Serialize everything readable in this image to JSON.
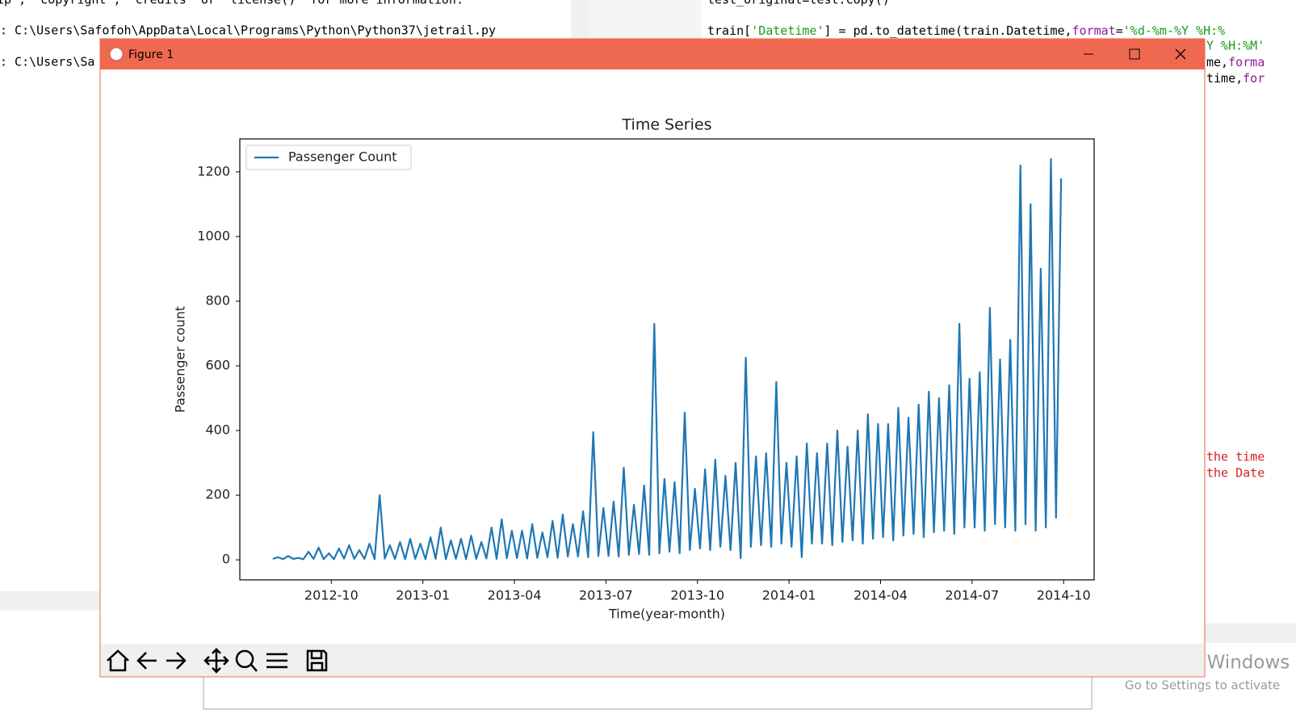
{
  "background": {
    "console_lines": [
      "ip\", \"copyright\", \"credits\" or \"license()\" for more information.",
      ": C:\\Users\\Safofoh\\AppData\\Local\\Programs\\Python\\Python37\\jetrail.py",
      ": C:\\Users\\Sa"
    ],
    "code_top": "test_original=test.copy()",
    "code_parts": [
      "train[",
      "'Datetime'",
      "] = pd.to_datetime(train.Datetime,",
      "format",
      "=",
      "'%d-%m-%Y %H:%"
    ],
    "code_fragments": [
      "Y %H:%M'",
      "me,",
      "forma",
      "time,",
      "for"
    ],
    "comment_lines": [
      "the time",
      "the Date"
    ],
    "watermark": [
      "Activate Windows",
      "Go to Settings to activate"
    ]
  },
  "window": {
    "title": "Figure 1"
  },
  "chart_data": {
    "type": "line",
    "title": "Time Series",
    "x_label": "Time(year-month)",
    "y_label": "Passenger count",
    "legend": "upper left",
    "grid": false,
    "xlim": [
      "2012-07",
      "2014-11"
    ],
    "xticks": [
      "2012-10",
      "2013-01",
      "2013-04",
      "2013-07",
      "2013-10",
      "2014-01",
      "2014-04",
      "2014-07",
      "2014-10"
    ],
    "ylim": [
      -62,
      1302
    ],
    "yticks": [
      0,
      200,
      400,
      600,
      800,
      1000,
      1200
    ],
    "x": [
      "2012-08",
      "2012-08",
      "2012-08",
      "2012-08",
      "2012-08",
      "2012-08",
      "2012-09",
      "2012-09",
      "2012-09",
      "2012-09",
      "2012-09",
      "2012-09",
      "2012-10",
      "2012-10",
      "2012-10",
      "2012-10",
      "2012-10",
      "2012-10",
      "2012-11",
      "2012-11",
      "2012-11",
      "2012-11",
      "2012-11",
      "2012-11",
      "2012-12",
      "2012-12",
      "2012-12",
      "2012-12",
      "2012-12",
      "2012-12",
      "2013-01",
      "2013-01",
      "2013-01",
      "2013-01",
      "2013-01",
      "2013-01",
      "2013-02",
      "2013-02",
      "2013-02",
      "2013-02",
      "2013-02",
      "2013-02",
      "2013-03",
      "2013-03",
      "2013-03",
      "2013-03",
      "2013-03",
      "2013-03",
      "2013-04",
      "2013-04",
      "2013-04",
      "2013-04",
      "2013-04",
      "2013-04",
      "2013-05",
      "2013-05",
      "2013-05",
      "2013-05",
      "2013-05",
      "2013-05",
      "2013-06",
      "2013-06",
      "2013-06",
      "2013-06",
      "2013-06",
      "2013-06",
      "2013-07",
      "2013-07",
      "2013-07",
      "2013-07",
      "2013-07",
      "2013-07",
      "2013-08",
      "2013-08",
      "2013-08",
      "2013-08",
      "2013-08",
      "2013-08",
      "2013-09",
      "2013-09",
      "2013-09",
      "2013-09",
      "2013-09",
      "2013-09",
      "2013-10",
      "2013-10",
      "2013-10",
      "2013-10",
      "2013-10",
      "2013-10",
      "2013-11",
      "2013-11",
      "2013-11",
      "2013-11",
      "2013-11",
      "2013-11",
      "2013-12",
      "2013-12",
      "2013-12",
      "2013-12",
      "2013-12",
      "2013-12",
      "2014-01",
      "2014-01",
      "2014-01",
      "2014-01",
      "2014-01",
      "2014-01",
      "2014-02",
      "2014-02",
      "2014-02",
      "2014-02",
      "2014-02",
      "2014-02",
      "2014-03",
      "2014-03",
      "2014-03",
      "2014-03",
      "2014-03",
      "2014-03",
      "2014-04",
      "2014-04",
      "2014-04",
      "2014-04",
      "2014-04",
      "2014-04",
      "2014-05",
      "2014-05",
      "2014-05",
      "2014-05",
      "2014-05",
      "2014-05",
      "2014-06",
      "2014-06",
      "2014-06",
      "2014-06",
      "2014-06",
      "2014-06",
      "2014-07",
      "2014-07",
      "2014-07",
      "2014-07",
      "2014-07",
      "2014-07",
      "2014-08",
      "2014-08",
      "2014-08",
      "2014-08",
      "2014-08",
      "2014-08",
      "2014-09",
      "2014-09",
      "2014-09",
      "2014-09",
      "2014-09",
      "2014-09"
    ],
    "series": [
      {
        "name": "Passenger Count",
        "color": "#1f77b4",
        "values": [
          3,
          8,
          2,
          12,
          3,
          6,
          2,
          25,
          3,
          38,
          2,
          20,
          2,
          35,
          4,
          45,
          3,
          30,
          3,
          50,
          2,
          200,
          4,
          45,
          3,
          55,
          2,
          65,
          3,
          50,
          2,
          70,
          3,
          100,
          2,
          60,
          3,
          65,
          2,
          75,
          3,
          55,
          4,
          100,
          3,
          125,
          5,
          90,
          5,
          90,
          4,
          110,
          6,
          85,
          8,
          120,
          6,
          140,
          10,
          110,
          10,
          150,
          8,
          395,
          12,
          160,
          12,
          180,
          10,
          285,
          15,
          170,
          18,
          230,
          15,
          730,
          20,
          250,
          25,
          240,
          20,
          455,
          30,
          220,
          35,
          280,
          30,
          310,
          40,
          260,
          30,
          300,
          5,
          625,
          40,
          320,
          45,
          330,
          40,
          550,
          50,
          300,
          40,
          320,
          8,
          360,
          50,
          330,
          50,
          360,
          45,
          400,
          55,
          350,
          60,
          400,
          50,
          450,
          65,
          420,
          70,
          420,
          60,
          470,
          75,
          440,
          80,
          480,
          70,
          520,
          85,
          500,
          90,
          540,
          80,
          730,
          100,
          560,
          100,
          580,
          90,
          780,
          110,
          620,
          100,
          680,
          90,
          1220,
          110,
          1100,
          90,
          900,
          100,
          1240,
          130,
          1180
        ]
      }
    ]
  }
}
